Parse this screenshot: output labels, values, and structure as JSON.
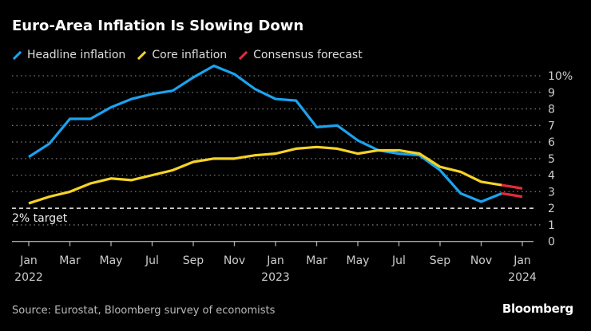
{
  "chart_data": {
    "type": "line",
    "title": "Euro-Area Inflation Is Slowing Down",
    "x": [
      "2022-01",
      "2022-02",
      "2022-03",
      "2022-04",
      "2022-05",
      "2022-06",
      "2022-07",
      "2022-08",
      "2022-09",
      "2022-10",
      "2022-11",
      "2022-12",
      "2023-01",
      "2023-02",
      "2023-03",
      "2023-04",
      "2023-05",
      "2023-06",
      "2023-07",
      "2023-08",
      "2023-09",
      "2023-10",
      "2023-11",
      "2023-12",
      "2024-01"
    ],
    "series": [
      {
        "name": "Headline inflation",
        "color": "#1aa3f0",
        "values": [
          5.1,
          5.9,
          7.4,
          7.4,
          8.1,
          8.6,
          8.9,
          9.1,
          9.9,
          10.6,
          10.1,
          9.2,
          8.6,
          8.5,
          6.9,
          7.0,
          6.1,
          5.5,
          5.3,
          5.2,
          4.3,
          2.9,
          2.4,
          2.9,
          null
        ]
      },
      {
        "name": "Core inflation",
        "color": "#f5d327",
        "values": [
          2.3,
          2.7,
          3.0,
          3.5,
          3.8,
          3.7,
          4.0,
          4.3,
          4.8,
          5.0,
          5.0,
          5.2,
          5.3,
          5.6,
          5.7,
          5.6,
          5.3,
          5.5,
          5.5,
          5.3,
          4.5,
          4.2,
          3.6,
          3.4,
          null
        ]
      },
      {
        "name": "Consensus forecast",
        "color": "#e8293a",
        "segments": [
          {
            "x": [
              "2023-12",
              "2024-01"
            ],
            "values": [
              2.9,
              2.7
            ]
          },
          {
            "x": [
              "2023-12",
              "2024-01"
            ],
            "values": [
              3.4,
              3.2
            ]
          }
        ]
      }
    ],
    "ylim": [
      0,
      10
    ],
    "yticks": [
      "0",
      "1",
      "2",
      "3",
      "4",
      "5",
      "6",
      "7",
      "8",
      "9",
      "10%"
    ],
    "xtick_labels": [
      {
        "month": "2022-01",
        "label": "Jan",
        "year": "2022"
      },
      {
        "month": "2022-03",
        "label": "Mar"
      },
      {
        "month": "2022-05",
        "label": "May"
      },
      {
        "month": "2022-07",
        "label": "Jul"
      },
      {
        "month": "2022-09",
        "label": "Sep"
      },
      {
        "month": "2022-11",
        "label": "Nov"
      },
      {
        "month": "2023-01",
        "label": "Jan",
        "year": "2023"
      },
      {
        "month": "2023-03",
        "label": "Mar"
      },
      {
        "month": "2023-05",
        "label": "May"
      },
      {
        "month": "2023-07",
        "label": "Jul"
      },
      {
        "month": "2023-09",
        "label": "Sep"
      },
      {
        "month": "2023-11",
        "label": "Nov"
      },
      {
        "month": "2024-01",
        "label": "Jan",
        "year": "2024"
      }
    ],
    "reference_line": {
      "value": 2,
      "label": "2% target"
    },
    "grid": true,
    "legend_position": "top-left",
    "yaxis_position": "right"
  },
  "source": "Source: Eurostat, Bloomberg survey of economists",
  "logo": "Bloomberg"
}
